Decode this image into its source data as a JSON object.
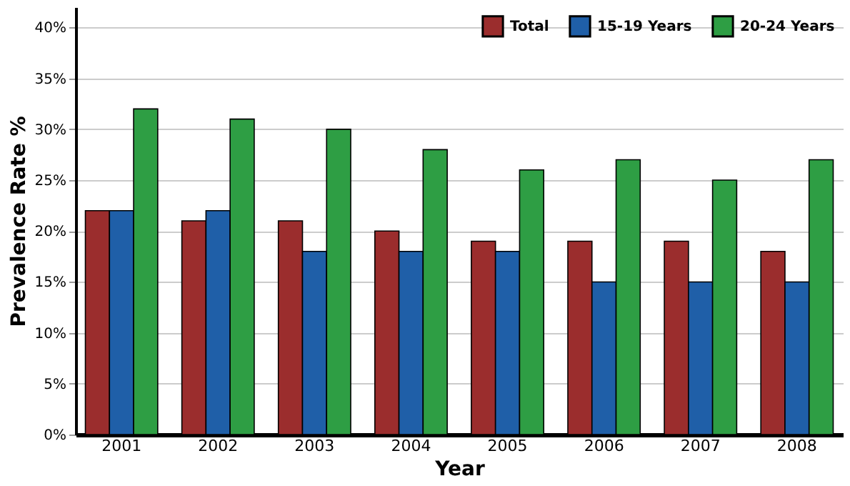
{
  "chart_data": {
    "type": "bar",
    "xlabel": "Year",
    "ylabel": "Prevalence Rate %",
    "categories": [
      "2001",
      "2002",
      "2003",
      "2004",
      "2005",
      "2006",
      "2007",
      "2008"
    ],
    "series": [
      {
        "name": "Total",
        "color": "#9b2d2d",
        "values": [
          22,
          21,
          21,
          20,
          19,
          19,
          19,
          18
        ]
      },
      {
        "name": "15-19 Years",
        "color": "#1f5fa8",
        "values": [
          22,
          22,
          18,
          18,
          18,
          15,
          15,
          15
        ]
      },
      {
        "name": "20-24 Years",
        "color": "#2e9e44",
        "values": [
          32,
          31,
          30,
          28,
          26,
          27,
          25,
          27
        ]
      }
    ],
    "ylim": [
      0,
      42
    ],
    "yticks": [
      {
        "value": 0,
        "label": "0%"
      },
      {
        "value": 5,
        "label": "5%"
      },
      {
        "value": 10,
        "label": "10%"
      },
      {
        "value": 15,
        "label": "15%"
      },
      {
        "value": 20,
        "label": "20%"
      },
      {
        "value": 25,
        "label": "25%"
      },
      {
        "value": 30,
        "label": "30%"
      },
      {
        "value": 35,
        "label": "35%"
      },
      {
        "value": 40,
        "label": "40%"
      }
    ],
    "grid": "y",
    "legend": "top right"
  }
}
